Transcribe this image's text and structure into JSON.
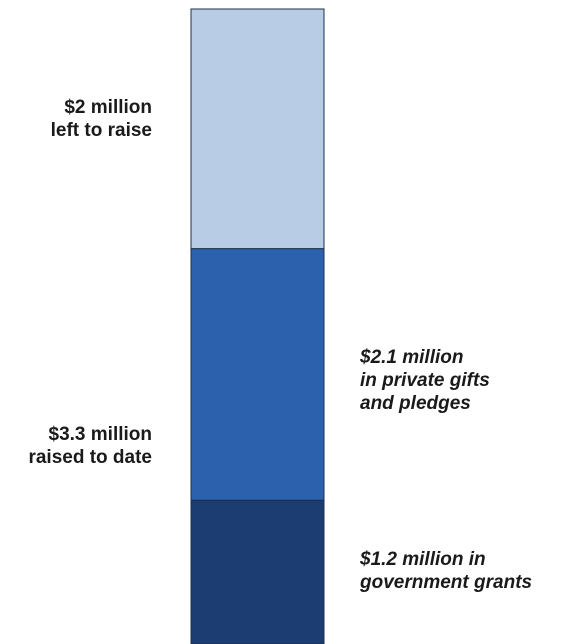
{
  "chart_data": {
    "type": "bar",
    "subtype": "stacked-column",
    "unit": "million USD",
    "total": 5.3,
    "segments": [
      {
        "name": "government grants",
        "value": 1.2,
        "color": "#1b3d72",
        "label_lines": [
          "$1.2 million in",
          "government grants"
        ],
        "label_side": "right",
        "label_style": "italic"
      },
      {
        "name": "private gifts and pledges",
        "value": 2.1,
        "color": "#2c62ad",
        "label_lines": [
          "$2.1 million",
          "in private gifts",
          "and pledges"
        ],
        "label_side": "right",
        "label_style": "italic"
      },
      {
        "name": "left to raise",
        "value": 2.0,
        "color": "#b8cce5",
        "label_lines": [
          "$2 million",
          "left to raise"
        ],
        "label_side": "left",
        "label_style": "normal"
      }
    ],
    "group_labels": [
      {
        "covers": [
          "government grants",
          "private gifts and pledges"
        ],
        "value": 3.3,
        "label_lines": [
          "$3.3 million",
          "raised to date"
        ],
        "label_side": "left"
      }
    ],
    "legend": "none",
    "grid": false,
    "axes": "none"
  }
}
